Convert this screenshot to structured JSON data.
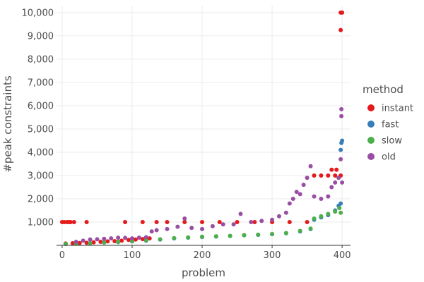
{
  "chart_data": {
    "type": "scatter",
    "title": "",
    "xlabel": "problem",
    "ylabel": "#peak constraints",
    "xlim": [
      -8,
      412
    ],
    "ylim": [
      0,
      10300
    ],
    "xticks": [
      0,
      100,
      200,
      300,
      400
    ],
    "xtick_labels": [
      "0",
      "100",
      "200",
      "300",
      "400"
    ],
    "yticks": [
      1000,
      2000,
      3000,
      4000,
      5000,
      6000,
      7000,
      8000,
      9000,
      10000
    ],
    "ytick_labels": [
      "1,000",
      "2,000",
      "3,000",
      "4,000",
      "5,000",
      "6,000",
      "7,000",
      "8,000",
      "9,000",
      "10,000"
    ],
    "grid": true,
    "legend": {
      "title": "method",
      "position": "right"
    },
    "series": [
      {
        "name": "instant",
        "color": "#e41a1c",
        "points": [
          [
            0,
            1000
          ],
          [
            3,
            1000
          ],
          [
            7,
            1000
          ],
          [
            10,
            1000
          ],
          [
            12,
            1000
          ],
          [
            17,
            1000
          ],
          [
            35,
            1000
          ],
          [
            90,
            1000
          ],
          [
            115,
            1000
          ],
          [
            5,
            80
          ],
          [
            15,
            90
          ],
          [
            25,
            100
          ],
          [
            35,
            110
          ],
          [
            45,
            130
          ],
          [
            55,
            150
          ],
          [
            65,
            170
          ],
          [
            75,
            180
          ],
          [
            85,
            200
          ],
          [
            95,
            230
          ],
          [
            105,
            250
          ],
          [
            115,
            270
          ],
          [
            125,
            300
          ],
          [
            135,
            1000
          ],
          [
            150,
            1000
          ],
          [
            175,
            1000
          ],
          [
            200,
            1000
          ],
          [
            225,
            1000
          ],
          [
            250,
            1000
          ],
          [
            275,
            1000
          ],
          [
            300,
            1000
          ],
          [
            325,
            1000
          ],
          [
            350,
            1000
          ],
          [
            360,
            3000
          ],
          [
            370,
            3000
          ],
          [
            380,
            3000
          ],
          [
            390,
            3000
          ],
          [
            398,
            3000
          ],
          [
            385,
            3250
          ],
          [
            392,
            3250
          ],
          [
            398,
            9250
          ],
          [
            398,
            10000
          ],
          [
            400,
            10000
          ]
        ]
      },
      {
        "name": "fast",
        "color": "#377eb8",
        "points": [
          [
            5,
            60
          ],
          [
            20,
            70
          ],
          [
            40,
            90
          ],
          [
            60,
            120
          ],
          [
            80,
            140
          ],
          [
            100,
            170
          ],
          [
            120,
            200
          ],
          [
            140,
            250
          ],
          [
            160,
            300
          ],
          [
            180,
            330
          ],
          [
            200,
            360
          ],
          [
            220,
            380
          ],
          [
            240,
            400
          ],
          [
            260,
            430
          ],
          [
            280,
            450
          ],
          [
            300,
            480
          ],
          [
            320,
            520
          ],
          [
            340,
            600
          ],
          [
            355,
            700
          ],
          [
            360,
            1100
          ],
          [
            370,
            1200
          ],
          [
            380,
            1300
          ],
          [
            390,
            1500
          ],
          [
            395,
            1700
          ],
          [
            398,
            1800
          ],
          [
            398,
            4100
          ],
          [
            399,
            4400
          ],
          [
            400,
            4500
          ]
        ]
      },
      {
        "name": "slow",
        "color": "#4daf4a",
        "points": [
          [
            5,
            60
          ],
          [
            20,
            70
          ],
          [
            40,
            90
          ],
          [
            60,
            120
          ],
          [
            80,
            150
          ],
          [
            100,
            180
          ],
          [
            120,
            220
          ],
          [
            140,
            260
          ],
          [
            160,
            310
          ],
          [
            180,
            340
          ],
          [
            200,
            370
          ],
          [
            220,
            390
          ],
          [
            240,
            410
          ],
          [
            260,
            440
          ],
          [
            280,
            460
          ],
          [
            300,
            490
          ],
          [
            320,
            530
          ],
          [
            340,
            620
          ],
          [
            355,
            720
          ],
          [
            360,
            1150
          ],
          [
            370,
            1250
          ],
          [
            380,
            1350
          ],
          [
            390,
            1450
          ],
          [
            396,
            1600
          ],
          [
            398,
            1400
          ]
        ]
      },
      {
        "name": "old",
        "color": "#984ea3",
        "points": [
          [
            20,
            150
          ],
          [
            30,
            200
          ],
          [
            40,
            250
          ],
          [
            50,
            260
          ],
          [
            60,
            280
          ],
          [
            70,
            300
          ],
          [
            80,
            330
          ],
          [
            90,
            320
          ],
          [
            100,
            300
          ],
          [
            110,
            330
          ],
          [
            120,
            350
          ],
          [
            128,
            600
          ],
          [
            135,
            650
          ],
          [
            150,
            700
          ],
          [
            165,
            800
          ],
          [
            175,
            1150
          ],
          [
            185,
            750
          ],
          [
            200,
            700
          ],
          [
            215,
            820
          ],
          [
            230,
            900
          ],
          [
            245,
            900
          ],
          [
            255,
            1350
          ],
          [
            270,
            1000
          ],
          [
            285,
            1050
          ],
          [
            300,
            1100
          ],
          [
            310,
            1250
          ],
          [
            320,
            1400
          ],
          [
            325,
            1800
          ],
          [
            330,
            2000
          ],
          [
            335,
            2300
          ],
          [
            340,
            2200
          ],
          [
            345,
            2600
          ],
          [
            350,
            2900
          ],
          [
            355,
            3400
          ],
          [
            360,
            2100
          ],
          [
            370,
            2000
          ],
          [
            380,
            2100
          ],
          [
            385,
            2500
          ],
          [
            390,
            2700
          ],
          [
            395,
            2900
          ],
          [
            398,
            3700
          ],
          [
            399,
            5550
          ],
          [
            399,
            5850
          ],
          [
            400,
            2700
          ]
        ]
      }
    ]
  }
}
